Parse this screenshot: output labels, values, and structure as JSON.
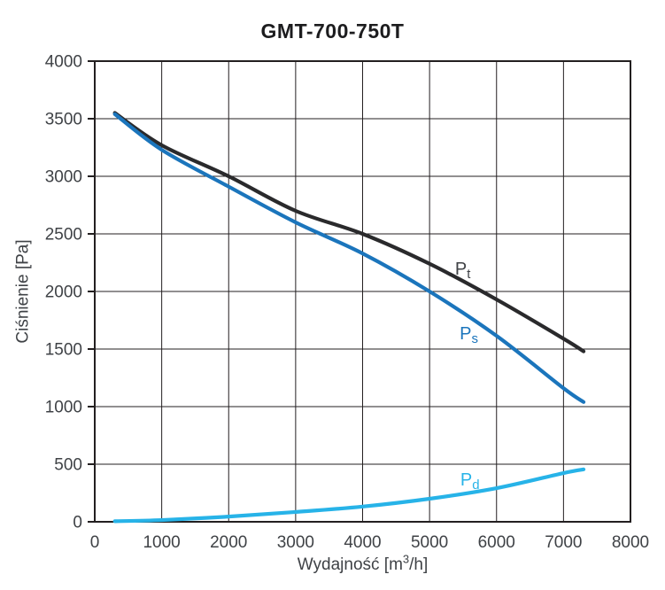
{
  "chart_data": {
    "type": "line",
    "title": "GMT-700-750T",
    "xlabel": "Wydajność [m³/h]",
    "xlabel_parts": {
      "pre": "Wydajność [m",
      "sup": "3",
      "post": "/h]"
    },
    "ylabel": "Ciśnienie [Pa]",
    "xlim": [
      0,
      8000
    ],
    "ylim": [
      0,
      4000
    ],
    "x_ticks": [
      0,
      1000,
      2000,
      3000,
      4000,
      5000,
      6000,
      7000,
      8000
    ],
    "y_ticks": [
      0,
      500,
      1000,
      1500,
      2000,
      2500,
      3000,
      3500,
      4000
    ],
    "grid": true,
    "legend_position": "inline-labels",
    "colors": {
      "axis": "#231f20",
      "grid": "#231f20",
      "tick_label": "#3f4246",
      "title": "#1c1c1e"
    },
    "series": [
      {
        "name": "Pt",
        "label_main": "P",
        "label_sub": "t",
        "color": "#2a2a2c",
        "label_color": "#3f4246",
        "label_pos": [
          5380,
          2145
        ],
        "points": [
          [
            300,
            3550
          ],
          [
            1000,
            3270
          ],
          [
            2000,
            3000
          ],
          [
            3000,
            2700
          ],
          [
            4000,
            2500
          ],
          [
            5000,
            2240
          ],
          [
            6000,
            1930
          ],
          [
            7000,
            1590
          ],
          [
            7300,
            1480
          ]
        ]
      },
      {
        "name": "Ps",
        "label_main": "P",
        "label_sub": "s",
        "color": "#1b75bc",
        "label_color": "#1b75bc",
        "label_pos": [
          5450,
          1585
        ],
        "points": [
          [
            300,
            3540
          ],
          [
            1000,
            3230
          ],
          [
            2000,
            2910
          ],
          [
            3000,
            2600
          ],
          [
            4000,
            2330
          ],
          [
            5000,
            2000
          ],
          [
            6000,
            1615
          ],
          [
            7000,
            1160
          ],
          [
            7300,
            1040
          ]
        ]
      },
      {
        "name": "Pd",
        "label_main": "P",
        "label_sub": "d",
        "color": "#27b3e8",
        "label_color": "#27b3e8",
        "label_pos": [
          5460,
          315
        ],
        "points": [
          [
            300,
            5
          ],
          [
            1000,
            15
          ],
          [
            2000,
            45
          ],
          [
            3000,
            85
          ],
          [
            4000,
            132
          ],
          [
            5000,
            200
          ],
          [
            6000,
            292
          ],
          [
            7000,
            423
          ],
          [
            7300,
            455
          ]
        ]
      }
    ]
  }
}
